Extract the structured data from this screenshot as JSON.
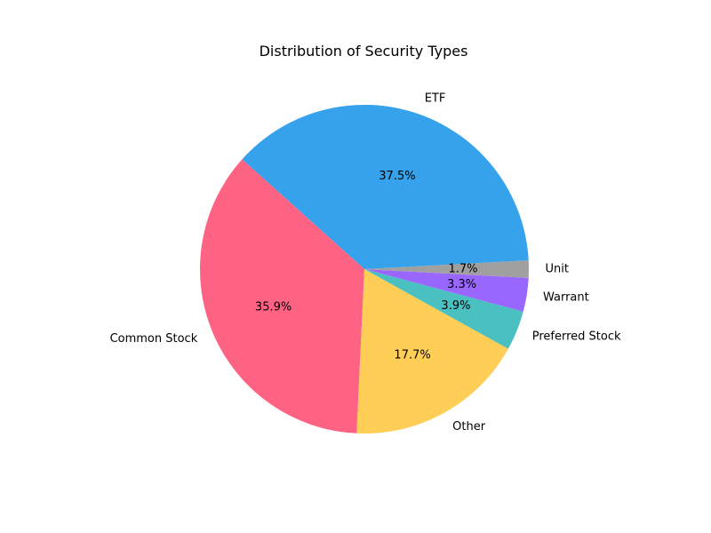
{
  "chart_data": {
    "type": "pie",
    "title": "Distribution of Security Types",
    "categories": [
      "ETF",
      "Common Stock",
      "Other",
      "Preferred Stock",
      "Warrant",
      "Unit"
    ],
    "values": [
      37.5,
      35.9,
      17.7,
      3.9,
      3.3,
      1.7
    ],
    "percent_labels": [
      "37.5%",
      "35.9%",
      "17.7%",
      "3.9%",
      "3.3%",
      "1.7%"
    ],
    "colors": [
      "#36A2EB",
      "#FF6384",
      "#FFCE56",
      "#4BC0C0",
      "#9966FF",
      "#A0A0A0"
    ],
    "start_angle_deg": 3.06,
    "direction": "counterclockwise"
  }
}
